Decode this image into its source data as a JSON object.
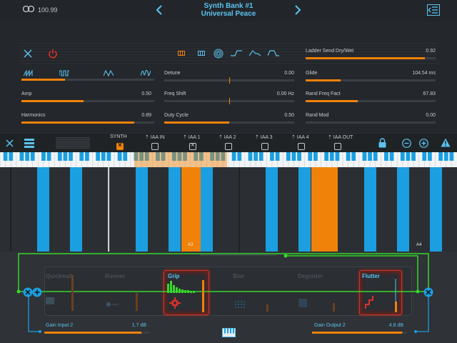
{
  "header": {
    "link_value": "100.99",
    "bank_name": "Synth Bank #1",
    "preset_name": "Universal Peace"
  },
  "synth": {
    "left_params": [
      {
        "label": "Amp",
        "value": "0.50",
        "level": 0.47
      },
      {
        "label": "Harmonics",
        "value": "0.89",
        "level": 0.85
      }
    ],
    "waveform_level": 0.33,
    "mid_params": [
      {
        "label": "Detune",
        "value": "0.00",
        "level": 0.5,
        "bipolar": true
      },
      {
        "label": "Freq Shift",
        "value": "0.00 Hz",
        "level": 0.5,
        "bipolar": true
      },
      {
        "label": "Duty Cycle",
        "value": "0.50",
        "level": 0.5,
        "bipolar": false
      }
    ],
    "right_params": [
      {
        "label": "Ladder Send Dry/Wet",
        "value": "0.92",
        "level": 0.92
      },
      {
        "label": "Glide",
        "value": "104.54 ms",
        "level": 0.27
      },
      {
        "label": "Rand Freq Fact",
        "value": "67.83",
        "level": 0.4
      },
      {
        "label": "Rand Mod",
        "value": "0.00",
        "level": 0.0
      }
    ]
  },
  "routing": [
    {
      "label": "SYNTH",
      "state": "on"
    },
    {
      "label": "⇡ IAA IN",
      "state": "off"
    },
    {
      "label": "⇡ IAA 1",
      "state": "gray"
    },
    {
      "label": "⇡ IAA 2",
      "state": "off"
    },
    {
      "label": "⇡ IAA 3",
      "state": "off"
    },
    {
      "label": "⇡ IAA 4",
      "state": "off"
    },
    {
      "label": "⇡ IAA OUT",
      "state": "off"
    }
  ],
  "keyboard": {
    "note_labels": [
      "A3",
      "A4"
    ]
  },
  "effects": {
    "names": [
      "Quickwall",
      "Runner",
      "Grip",
      "Blur",
      "Degrader",
      "Flutter"
    ],
    "gain_input": {
      "label": "Gain Input 2",
      "value": "1.7 dB",
      "level": 0.92
    },
    "gain_output": {
      "label": "Gain Output 2",
      "value": "4.8 dB",
      "level": 0.95
    }
  },
  "colors": {
    "accent_orange": "#f0820a",
    "accent_blue": "#1b9fe0",
    "connection_green": "#37d82a",
    "active_red": "#c23a2c"
  }
}
